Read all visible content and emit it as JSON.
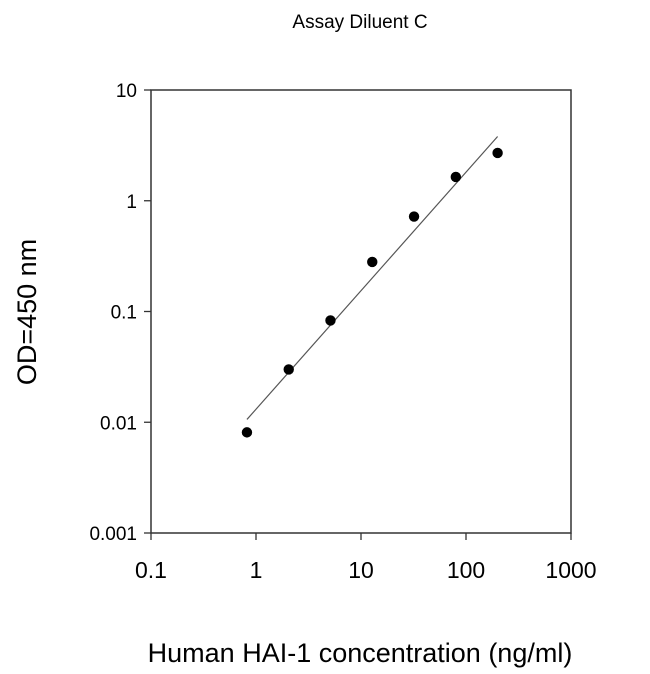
{
  "chart_data": {
    "type": "scatter",
    "title": "Assay Diluent C",
    "xlabel": "Human HAI-1 concentration (ng/ml)",
    "ylabel": "OD=450 nm",
    "x_scale": "log",
    "y_scale": "log",
    "xlim": [
      0.1,
      1000
    ],
    "ylim": [
      0.001,
      10
    ],
    "x_ticks": [
      "0.1",
      "1",
      "10",
      "100",
      "1000"
    ],
    "y_ticks": [
      "0.001",
      "0.01",
      "0.1",
      "1",
      "10"
    ],
    "grid": false,
    "points": {
      "x": [
        0.82,
        2.05,
        5.12,
        12.8,
        32,
        80,
        200
      ],
      "y": [
        0.0081,
        0.03,
        0.083,
        0.28,
        0.72,
        1.64,
        2.7
      ]
    },
    "fit_line": {
      "x": [
        0.82,
        200
      ],
      "y": [
        0.0106,
        3.8
      ]
    },
    "colors": {
      "points": "#000000",
      "fit_line": "#555555",
      "axes": "#333333"
    }
  }
}
